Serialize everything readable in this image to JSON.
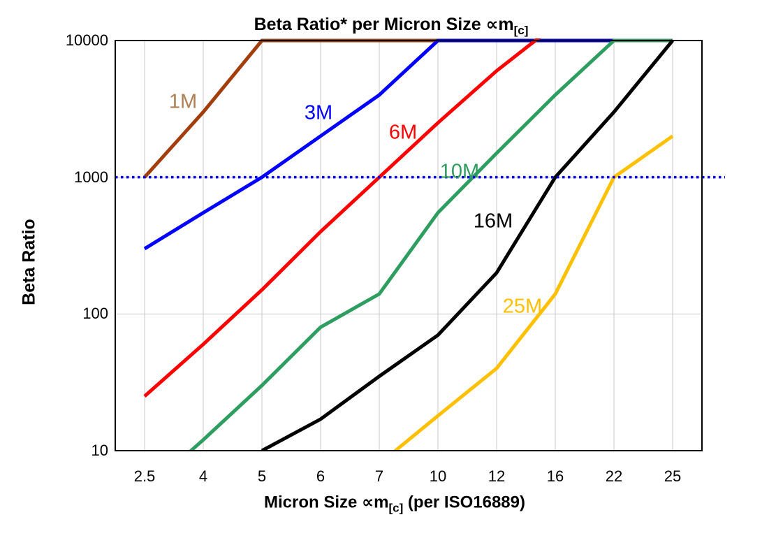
{
  "chart_title": {
    "text": "Beta Ratio* per Micron Size ∝m",
    "sub": "[c]"
  },
  "y_axis_title": "Beta Ratio",
  "x_axis_title": {
    "text": "Micron Size ∝m",
    "sub": "[c]",
    "suffix": " (per ISO16889)"
  },
  "colors": {
    "gridline": "#C8C8C8",
    "plot_border": "#000000",
    "reference_line": "#0000F0",
    "background": "#FFFFFF"
  },
  "chart_data": {
    "type": "line",
    "title": "Beta Ratio* per Micron Size ∝m[c]",
    "xlabel": "Micron Size ∝m[c] (per ISO16889)",
    "ylabel": "Beta Ratio",
    "x_categories": [
      2.5,
      4,
      5,
      6,
      7,
      10,
      12,
      16,
      22,
      25
    ],
    "x_tick_labels": [
      "2.5",
      "4",
      "5",
      "6",
      "7",
      "10",
      "12",
      "16",
      "22",
      "25"
    ],
    "y_scale": "log",
    "ylim": [
      10,
      10000
    ],
    "y_ticks": [
      10000,
      1000,
      100,
      10
    ],
    "y_tick_labels": [
      "10000",
      "1000",
      "100",
      "10"
    ],
    "grid": "on",
    "legend_position": "inline-labels",
    "reference_line": {
      "y": 1000,
      "style": "dotted",
      "color": "#0000F0"
    },
    "note": "values above 10000 are clipped at plot top; values below 10 are clipped at plot bottom",
    "series": [
      {
        "name": "1M",
        "color": "#A33E0C",
        "label_color": "#B08054",
        "values": [
          1000,
          3000,
          10000,
          10000,
          10000,
          10000,
          10000,
          10000,
          10000,
          10000
        ]
      },
      {
        "name": "3M",
        "color": "#0000FF",
        "label_color": "#0000FF",
        "values": [
          300,
          550,
          1000,
          2000,
          4000,
          10000,
          10000,
          10000,
          10000,
          10000
        ]
      },
      {
        "name": "6M",
        "color": "#FF0000",
        "label_color": "#FF0000",
        "values": [
          25,
          60,
          150,
          400,
          1000,
          2500,
          6000,
          13000,
          13000,
          13000
        ]
      },
      {
        "name": "10M",
        "color": "#2E9E60",
        "label_color": "#2E9E60",
        "values": [
          5,
          12,
          30,
          80,
          140,
          550,
          1500,
          4000,
          10000,
          10000
        ]
      },
      {
        "name": "16M",
        "color": "#000000",
        "label_color": "#000000",
        "values": [
          null,
          null,
          10,
          17,
          35,
          70,
          200,
          1000,
          3000,
          10000
        ]
      },
      {
        "name": "25M",
        "color": "#FFC000",
        "label_color": "#FFC000",
        "values": [
          null,
          null,
          null,
          null,
          8,
          18,
          40,
          140,
          1000,
          2000
        ]
      }
    ]
  }
}
